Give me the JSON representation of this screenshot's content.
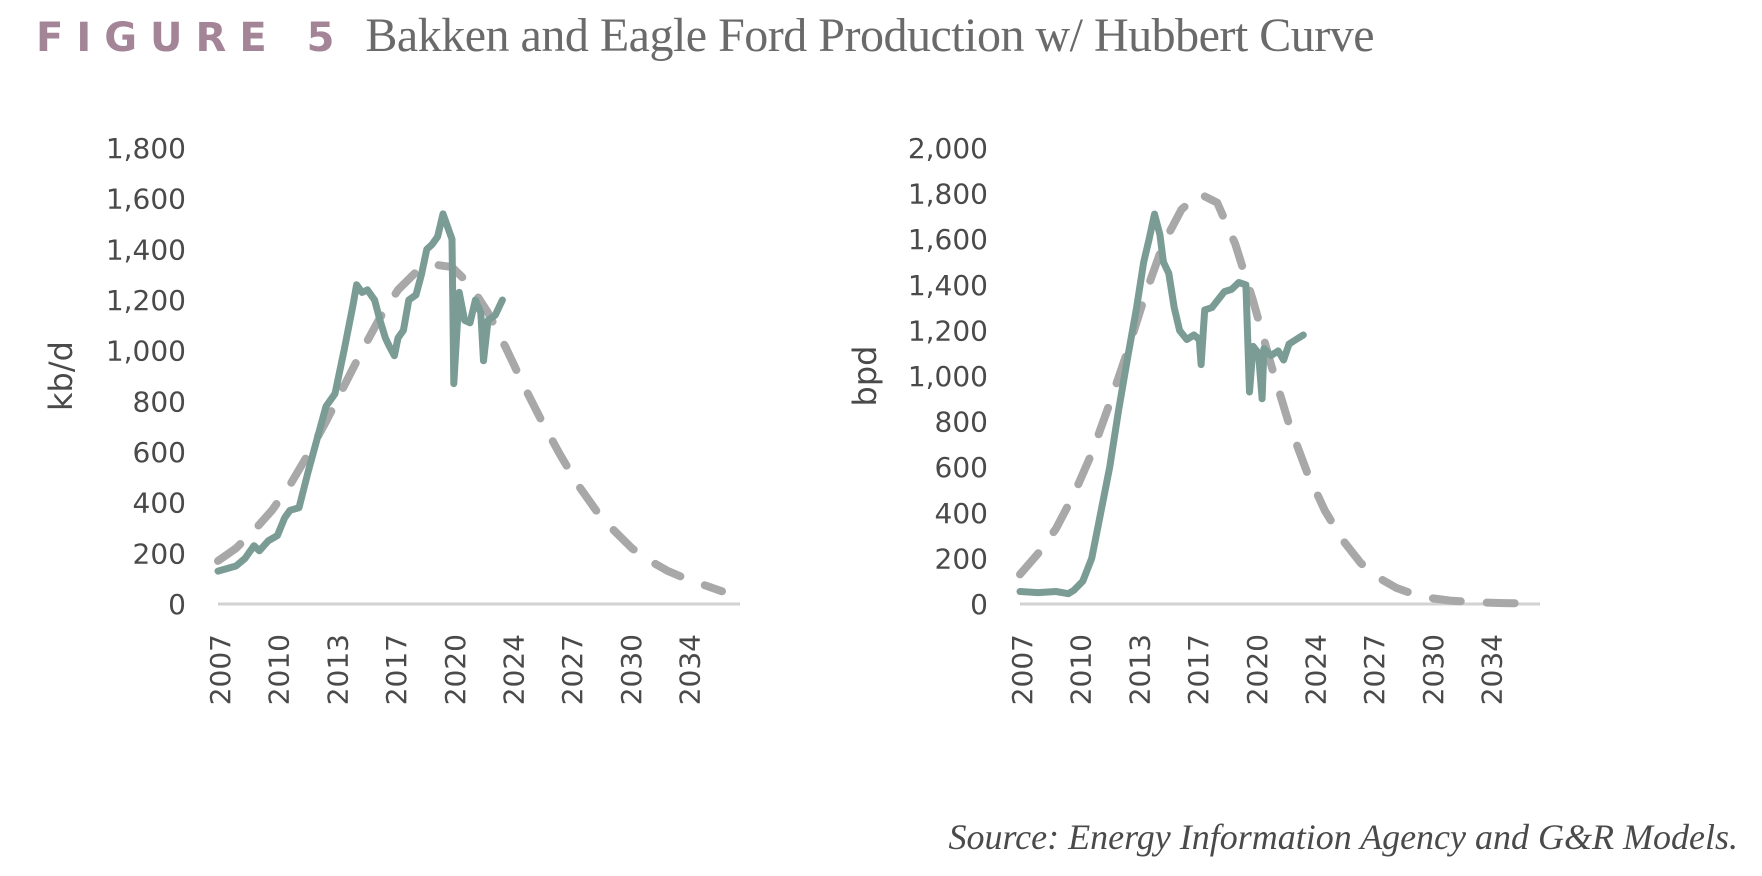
{
  "figure": {
    "label": "FIGURE 5",
    "title": "Bakken and Eagle Ford Production w/ Hubbert Curve",
    "source": "Source: Energy Information Agency and G&R Models."
  },
  "colors": {
    "actual": "#7a9c94",
    "hubbert": "#a8a8a8",
    "axis": "#d2d2d2",
    "text": "#4a4a4a",
    "figure_label": "#a48497"
  },
  "chart_data": [
    {
      "type": "line",
      "ylabel": "kb/d",
      "xlabel": "",
      "ylim": [
        0,
        1800
      ],
      "yticks": [
        0,
        200,
        400,
        600,
        800,
        1000,
        1200,
        1400,
        1600,
        1800
      ],
      "xlim": [
        2007,
        2036
      ],
      "xtick_labels": [
        "2007",
        "2010",
        "2013",
        "2017",
        "2020",
        "2024",
        "2027",
        "2030",
        "2034"
      ],
      "legend": "none",
      "grid": false,
      "series": [
        {
          "style": "solid",
          "color": "#7a9c94",
          "points": [
            [
              2007.0,
              130
            ],
            [
              2008.0,
              150
            ],
            [
              2008.5,
              180
            ],
            [
              2009.0,
              230
            ],
            [
              2009.3,
              210
            ],
            [
              2009.8,
              250
            ],
            [
              2010.3,
              270
            ],
            [
              2010.7,
              340
            ],
            [
              2011.0,
              370
            ],
            [
              2011.5,
              380
            ],
            [
              2012.0,
              520
            ],
            [
              2012.5,
              650
            ],
            [
              2013.0,
              780
            ],
            [
              2013.5,
              830
            ],
            [
              2014.0,
              1000
            ],
            [
              2014.5,
              1180
            ],
            [
              2014.7,
              1260
            ],
            [
              2015.0,
              1230
            ],
            [
              2015.3,
              1240
            ],
            [
              2015.7,
              1200
            ],
            [
              2016.0,
              1120
            ],
            [
              2016.3,
              1050
            ],
            [
              2016.5,
              1020
            ],
            [
              2016.8,
              980
            ],
            [
              2017.0,
              1050
            ],
            [
              2017.3,
              1080
            ],
            [
              2017.6,
              1200
            ],
            [
              2018.0,
              1220
            ],
            [
              2018.3,
              1300
            ],
            [
              2018.6,
              1400
            ],
            [
              2018.9,
              1420
            ],
            [
              2019.2,
              1450
            ],
            [
              2019.5,
              1540
            ],
            [
              2019.8,
              1480
            ],
            [
              2020.0,
              1440
            ],
            [
              2020.1,
              870
            ],
            [
              2020.4,
              1230
            ],
            [
              2020.7,
              1120
            ],
            [
              2021.0,
              1110
            ],
            [
              2021.3,
              1200
            ],
            [
              2021.6,
              1150
            ],
            [
              2021.75,
              960
            ],
            [
              2022.0,
              1120
            ],
            [
              2022.4,
              1140
            ],
            [
              2022.8,
              1200
            ]
          ]
        },
        {
          "style": "dashed",
          "color": "#a8a8a8",
          "points": [
            [
              2007.0,
              170
            ],
            [
              2008.0,
              220
            ],
            [
              2009.0,
              290
            ],
            [
              2010.0,
              370
            ],
            [
              2011.0,
              470
            ],
            [
              2012.0,
              590
            ],
            [
              2013.0,
              720
            ],
            [
              2014.0,
              860
            ],
            [
              2015.0,
              1000
            ],
            [
              2016.0,
              1130
            ],
            [
              2017.0,
              1240
            ],
            [
              2018.0,
              1310
            ],
            [
              2019.0,
              1340
            ],
            [
              2020.0,
              1330
            ],
            [
              2021.0,
              1260
            ],
            [
              2022.0,
              1150
            ],
            [
              2023.0,
              1010
            ],
            [
              2024.0,
              860
            ],
            [
              2025.0,
              720
            ],
            [
              2026.0,
              590
            ],
            [
              2027.0,
              470
            ],
            [
              2028.0,
              370
            ],
            [
              2029.0,
              290
            ],
            [
              2030.0,
              220
            ],
            [
              2031.0,
              170
            ],
            [
              2032.0,
              130
            ],
            [
              2033.0,
              100
            ],
            [
              2034.0,
              75
            ],
            [
              2035.0,
              50
            ]
          ]
        }
      ]
    },
    {
      "type": "line",
      "ylabel": "bpd",
      "xlabel": "",
      "ylim": [
        0,
        2000
      ],
      "yticks": [
        0,
        200,
        400,
        600,
        800,
        1000,
        1200,
        1400,
        1600,
        1800,
        2000
      ],
      "xlim": [
        2007,
        2036
      ],
      "xtick_labels": [
        "2007",
        "2010",
        "2013",
        "2017",
        "2020",
        "2024",
        "2027",
        "2030",
        "2034"
      ],
      "legend": "none",
      "grid": false,
      "series": [
        {
          "style": "solid",
          "color": "#7a9c94",
          "points": [
            [
              2007.0,
              55
            ],
            [
              2008.0,
              50
            ],
            [
              2009.0,
              55
            ],
            [
              2009.7,
              45
            ],
            [
              2010.0,
              60
            ],
            [
              2010.5,
              100
            ],
            [
              2011.0,
              200
            ],
            [
              2011.5,
              400
            ],
            [
              2012.0,
              600
            ],
            [
              2012.5,
              850
            ],
            [
              2013.0,
              1080
            ],
            [
              2013.5,
              1300
            ],
            [
              2013.9,
              1500
            ],
            [
              2014.2,
              1600
            ],
            [
              2014.5,
              1710
            ],
            [
              2014.8,
              1620
            ],
            [
              2015.0,
              1500
            ],
            [
              2015.3,
              1450
            ],
            [
              2015.6,
              1300
            ],
            [
              2015.9,
              1200
            ],
            [
              2016.3,
              1160
            ],
            [
              2016.7,
              1180
            ],
            [
              2017.0,
              1160
            ],
            [
              2017.1,
              1050
            ],
            [
              2017.3,
              1290
            ],
            [
              2017.7,
              1300
            ],
            [
              2018.0,
              1330
            ],
            [
              2018.4,
              1370
            ],
            [
              2018.8,
              1380
            ],
            [
              2019.2,
              1410
            ],
            [
              2019.6,
              1400
            ],
            [
              2019.8,
              930
            ],
            [
              2020.0,
              1130
            ],
            [
              2020.3,
              1100
            ],
            [
              2020.5,
              900
            ],
            [
              2020.6,
              1120
            ],
            [
              2021.0,
              1090
            ],
            [
              2021.4,
              1110
            ],
            [
              2021.7,
              1070
            ],
            [
              2022.0,
              1140
            ],
            [
              2022.4,
              1160
            ],
            [
              2022.8,
              1180
            ]
          ]
        },
        {
          "style": "dashed",
          "color": "#a8a8a8",
          "points": [
            [
              2007.0,
              130
            ],
            [
              2008.0,
              220
            ],
            [
              2009.0,
              330
            ],
            [
              2010.0,
              480
            ],
            [
              2011.0,
              660
            ],
            [
              2012.0,
              880
            ],
            [
              2013.0,
              1110
            ],
            [
              2014.0,
              1360
            ],
            [
              2015.0,
              1580
            ],
            [
              2016.0,
              1730
            ],
            [
              2017.0,
              1800
            ],
            [
              2018.0,
              1760
            ],
            [
              2019.0,
              1580
            ],
            [
              2020.0,
              1330
            ],
            [
              2021.0,
              1050
            ],
            [
              2022.0,
              790
            ],
            [
              2023.0,
              580
            ],
            [
              2024.0,
              410
            ],
            [
              2025.0,
              280
            ],
            [
              2026.0,
              180
            ],
            [
              2027.0,
              115
            ],
            [
              2028.0,
              70
            ],
            [
              2029.0,
              42
            ],
            [
              2030.0,
              25
            ],
            [
              2031.0,
              15
            ],
            [
              2032.0,
              10
            ],
            [
              2033.0,
              6
            ],
            [
              2034.0,
              4
            ],
            [
              2035.0,
              3
            ]
          ]
        }
      ]
    }
  ]
}
